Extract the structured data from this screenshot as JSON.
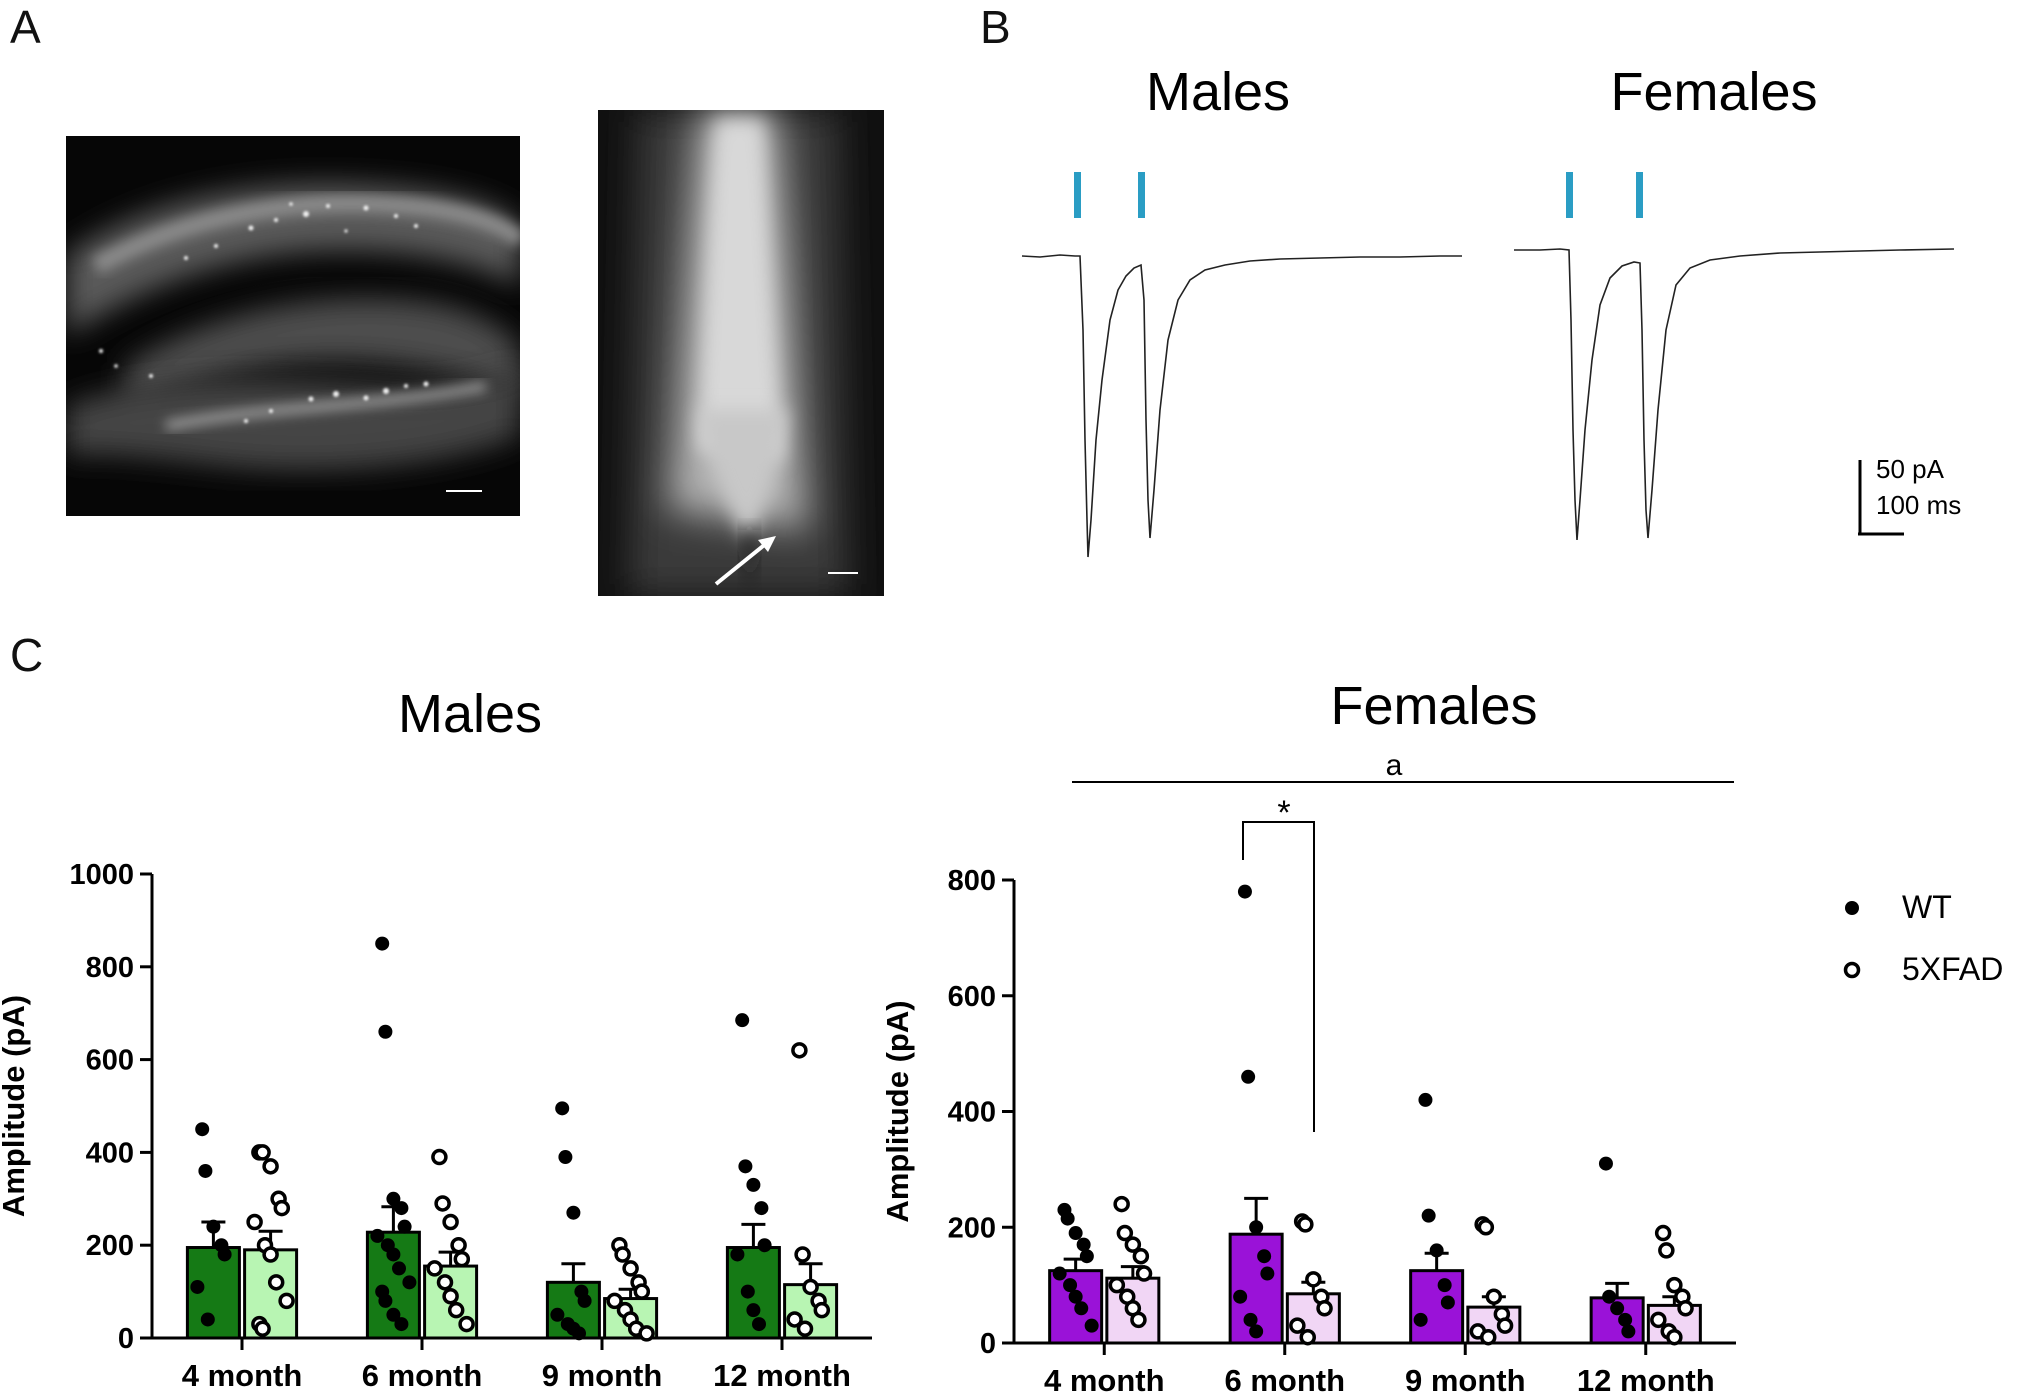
{
  "panel_labels": {
    "a": "A",
    "b": "B",
    "c": "C"
  },
  "trace_panels": [
    {
      "title": "Males"
    },
    {
      "title": "Females"
    }
  ],
  "scale_bar": {
    "amplitude": "50 pA",
    "time": "100 ms"
  },
  "colors": {
    "male_wt": "#157a15",
    "male_5xfad": "#b8f5b3",
    "female_wt": "#9a12d8",
    "female_5xfad": "#f1d6f5",
    "stimulus": "#2a9dc4"
  },
  "legend": {
    "wt": "WT",
    "fxad": "5XFAD"
  },
  "chart_data": [
    {
      "type": "bar",
      "title": "Males",
      "ylabel": "Amplitude (pA)",
      "ylim": [
        0,
        1000
      ],
      "yticks": [
        0,
        200,
        400,
        600,
        800,
        1000
      ],
      "categories": [
        "4 month",
        "6 month",
        "9 month",
        "12 month"
      ],
      "series": [
        {
          "name": "WT",
          "values": [
            195,
            228,
            120,
            195
          ],
          "sem": [
            55,
            55,
            40,
            50
          ],
          "points": [
            [
              450,
              360,
              240,
              200,
              180,
              110,
              40
            ],
            [
              850,
              660,
              300,
              280,
              240,
              220,
              200,
              180,
              150,
              120,
              100,
              80,
              50,
              30
            ],
            [
              495,
              390,
              270,
              100,
              80,
              50,
              30,
              20,
              10
            ],
            [
              685,
              370,
              330,
              280,
              200,
              180,
              100,
              60,
              30
            ]
          ]
        },
        {
          "name": "5XFAD",
          "values": [
            190,
            155,
            85,
            115
          ],
          "sem": [
            40,
            30,
            20,
            45
          ],
          "points": [
            [
              400,
              400,
              370,
              300,
              280,
              250,
              200,
              180,
              120,
              80,
              30,
              20
            ],
            [
              390,
              290,
              250,
              200,
              170,
              150,
              120,
              90,
              60,
              30
            ],
            [
              200,
              180,
              150,
              120,
              100,
              80,
              60,
              40,
              20,
              10
            ],
            [
              620,
              180,
              110,
              80,
              60,
              40,
              20
            ]
          ]
        }
      ]
    },
    {
      "type": "bar",
      "title": "Females",
      "ylabel": "Amplitude (pA)",
      "ylim": [
        0,
        800
      ],
      "yticks": [
        0,
        200,
        400,
        600,
        800
      ],
      "categories": [
        "4 month",
        "6 month",
        "9 month",
        "12 month"
      ],
      "annotations": {
        "bracket_label": "a",
        "significance": "*"
      },
      "series": [
        {
          "name": "WT",
          "values": [
            125,
            188,
            125,
            78
          ],
          "sem": [
            20,
            62,
            30,
            25
          ],
          "points": [
            [
              230,
              215,
              190,
              170,
              150,
              120,
              100,
              80,
              60,
              30
            ],
            [
              780,
              460,
              200,
              150,
              120,
              80,
              40,
              20
            ],
            [
              420,
              220,
              160,
              100,
              70,
              40
            ],
            [
              310,
              80,
              60,
              40,
              20
            ]
          ]
        },
        {
          "name": "5XFAD",
          "values": [
            112,
            85,
            62,
            65
          ],
          "sem": [
            20,
            20,
            18,
            15
          ],
          "points": [
            [
              240,
              190,
              170,
              150,
              120,
              100,
              80,
              60,
              40
            ],
            [
              210,
              205,
              110,
              80,
              60,
              30,
              10
            ],
            [
              205,
              200,
              80,
              50,
              30,
              20,
              10
            ],
            [
              190,
              160,
              100,
              80,
              60,
              40,
              20,
              10
            ]
          ]
        }
      ]
    }
  ]
}
